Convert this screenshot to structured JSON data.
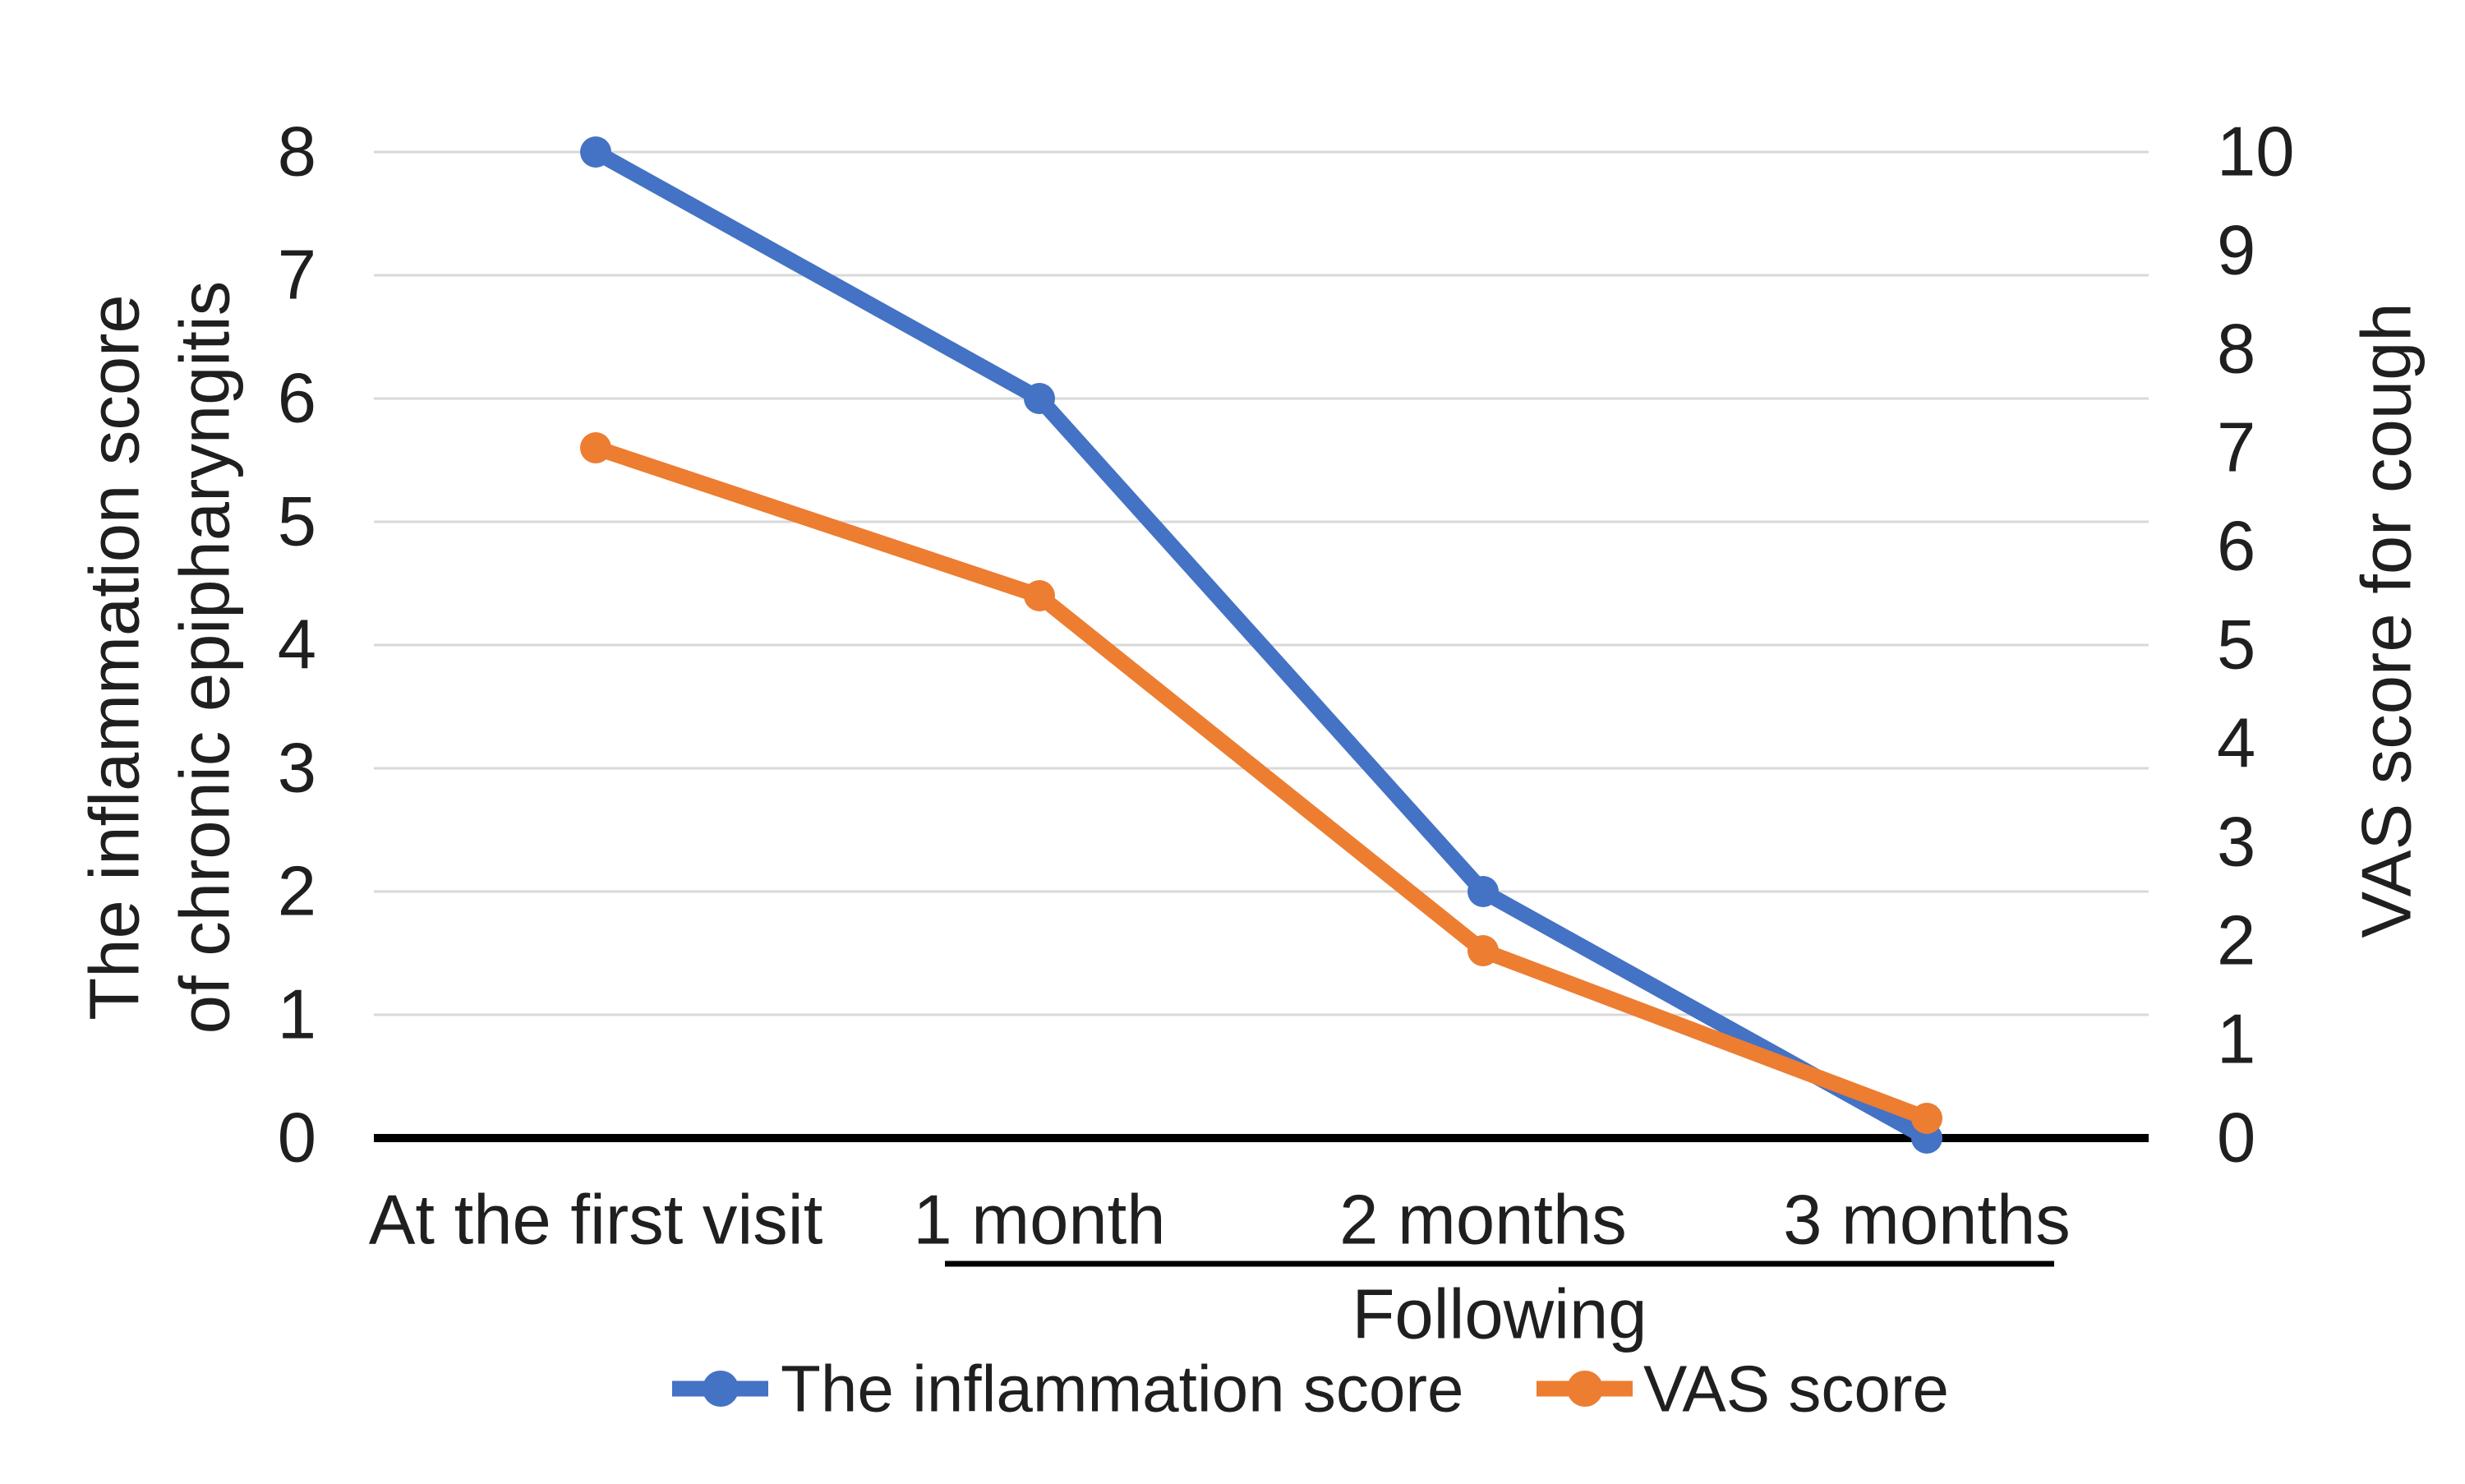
{
  "figure": {
    "background": "#ffffff",
    "left_axis": {
      "title_lines": [
        "The inflammation score",
        "of chronic epipharyngitis"
      ],
      "min": 0,
      "max": 8,
      "step": 1,
      "tick_labels": [
        "0",
        "1",
        "2",
        "3",
        "4",
        "5",
        "6",
        "7",
        "8"
      ]
    },
    "right_axis": {
      "title": "VAS score for cough",
      "min": 0,
      "max": 10,
      "step": 1,
      "tick_labels": [
        "0",
        "1",
        "2",
        "3",
        "4",
        "5",
        "6",
        "7",
        "8",
        "9",
        "10"
      ]
    },
    "x_axis": {
      "categories": [
        "At the first visit",
        "1 month",
        "2 months",
        "3 months"
      ],
      "group_label": "Following"
    },
    "legend": [
      {
        "label": "The inflammation score",
        "color": "#4472C4"
      },
      {
        "label": "VAS score",
        "color": "#ED7D31"
      }
    ],
    "colors": {
      "series_blue": "#4472C4",
      "series_orange": "#ED7D31",
      "gridline": "#D9D9D9",
      "axis_line": "#000000",
      "text": "#1f1f1f"
    }
  },
  "chart_data": {
    "type": "line",
    "categories": [
      "At the first visit",
      "1 month",
      "2 months",
      "3 months"
    ],
    "series": [
      {
        "name": "The inflammation score",
        "axis": "left",
        "color": "#4472C4",
        "values": [
          8,
          6,
          2,
          0
        ]
      },
      {
        "name": "VAS score",
        "axis": "right",
        "color": "#ED7D31",
        "values": [
          7,
          5.5,
          1.9,
          0.2
        ]
      }
    ],
    "left_ylim": [
      0,
      8
    ],
    "right_ylim": [
      0,
      10
    ],
    "grid": true,
    "legend_position": "bottom",
    "xlabel_group": "Following applies to: 1 month, 2 months, 3 months"
  }
}
